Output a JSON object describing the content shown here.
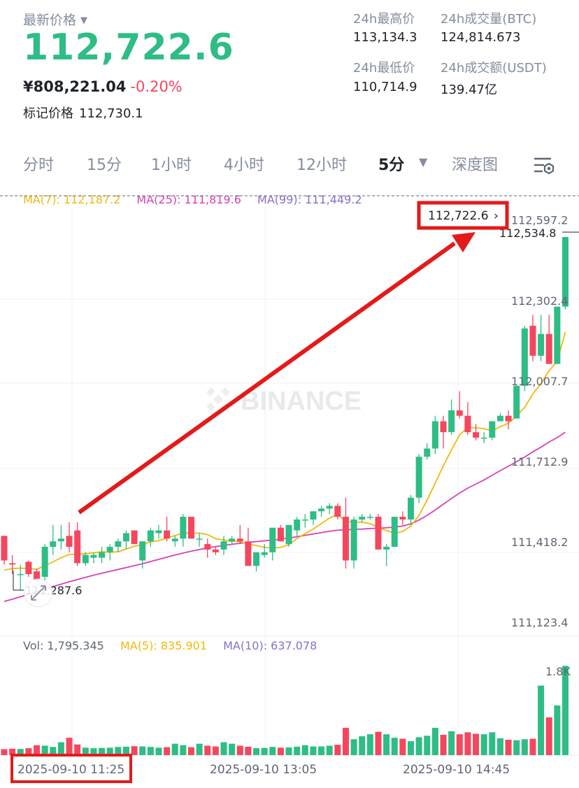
{
  "header": {
    "latest_label": "最新价格",
    "last_price": "112,722.6",
    "cny_price": "¥808,221.04",
    "change_pct": "-0.20%",
    "mark_label": "标记价格",
    "mark_price": "112,730.1"
  },
  "stats": {
    "high_label": "24h最高价",
    "high": "113,134.3",
    "vol_btc_label": "24h成交量(BTC)",
    "vol_btc": "124,814.673",
    "low_label": "24h最低价",
    "low": "110,714.9",
    "vol_usdt_label": "24h成交额(USDT)",
    "vol_usdt": "139.47亿"
  },
  "tabs": [
    "分时",
    "15分",
    "1小时",
    "4小时",
    "12小时",
    "5分",
    "深度图"
  ],
  "active_tab": "5分",
  "icons": {
    "dropdown": "caret-down-icon",
    "settings": "chart-settings-icon",
    "expand": "expand-arrows-icon"
  },
  "indicators": {
    "ma7": "MA(7): 112,187.2",
    "ma25": "MA(25): 111,819.6",
    "ma99": "MA(99): 111,449.2"
  },
  "volume_indicators": {
    "vol": "Vol: 1,795.345",
    "ma5": "MA(5): 835.901",
    "ma10": "MA(10): 637.078"
  },
  "colors": {
    "up": "#2ebd85",
    "down": "#f6465d",
    "ma7": "#f0b90b",
    "ma25": "#d742b4",
    "ma99": "#8a6fc8",
    "annotation": "#e41a1a"
  },
  "chart_labels": {
    "current_price_tag": "112,722.6",
    "max_marker": "112,534.8",
    "min_marker": "111,287.6",
    "watermark": "BINANCE",
    "volume_max": "1.8K"
  },
  "chart_data": {
    "type": "candlestick",
    "y_ticks": [
      "112,597.2",
      "112,302.4",
      "112,007.7",
      "111,712.9",
      "111,418.2",
      "111,123.4"
    ],
    "ylim": [
      111085,
      112640
    ],
    "x_tick_labels": [
      "2025-09-10 11:25",
      "2025-09-10 13:05",
      "2025-09-10 14:45"
    ],
    "interval": "5m",
    "candles_ohlc": [
      [
        111440,
        111440,
        111335,
        111350
      ],
      [
        111340,
        111370,
        111300,
        111335
      ],
      [
        111300,
        111335,
        111240,
        111300
      ],
      [
        111345,
        111350,
        111290,
        111300
      ],
      [
        111310,
        111320,
        111270,
        111280
      ],
      [
        111290,
        111410,
        111270,
        111400
      ],
      [
        111400,
        111480,
        111370,
        111420
      ],
      [
        111420,
        111480,
        111390,
        111430
      ],
      [
        111440,
        111490,
        111380,
        111400
      ],
      [
        111460,
        111490,
        111330,
        111340
      ],
      [
        111340,
        111380,
        111330,
        111370
      ],
      [
        111360,
        111380,
        111340,
        111370
      ],
      [
        111360,
        111400,
        111340,
        111380
      ],
      [
        111380,
        111410,
        111350,
        111400
      ],
      [
        111400,
        111430,
        111380,
        111420
      ],
      [
        111420,
        111460,
        111390,
        111450
      ],
      [
        111460,
        111460,
        111410,
        111410
      ],
      [
        111350,
        111420,
        111320,
        111420
      ],
      [
        111420,
        111470,
        111400,
        111460
      ],
      [
        111450,
        111480,
        111430,
        111460
      ],
      [
        111460,
        111510,
        111420,
        111430
      ],
      [
        111420,
        111440,
        111400,
        111430
      ],
      [
        111430,
        111520,
        111400,
        111510
      ],
      [
        111510,
        111510,
        111430,
        111430
      ],
      [
        111430,
        111450,
        111400,
        111430
      ],
      [
        111410,
        111430,
        111360,
        111390
      ],
      [
        111390,
        111400,
        111370,
        111380
      ],
      [
        111390,
        111440,
        111370,
        111420
      ],
      [
        111420,
        111440,
        111410,
        111430
      ],
      [
        111430,
        111480,
        111410,
        111420
      ],
      [
        111420,
        111470,
        111330,
        111330
      ],
      [
        111330,
        111380,
        111310,
        111380
      ],
      [
        111370,
        111410,
        111360,
        111380
      ],
      [
        111380,
        111470,
        111350,
        111470
      ],
      [
        111470,
        111480,
        111420,
        111420
      ],
      [
        111410,
        111480,
        111400,
        111480
      ],
      [
        111460,
        111510,
        111440,
        111500
      ],
      [
        111500,
        111520,
        111470,
        111500
      ],
      [
        111500,
        111530,
        111480,
        111530
      ],
      [
        111530,
        111550,
        111510,
        111540
      ],
      [
        111540,
        111560,
        111520,
        111550
      ],
      [
        111550,
        111560,
        111500,
        111510
      ],
      [
        111510,
        111580,
        111320,
        111350
      ],
      [
        111350,
        111510,
        111320,
        111500
      ],
      [
        111500,
        111520,
        111490,
        111510
      ],
      [
        111510,
        111520,
        111500,
        111510
      ],
      [
        111510,
        111520,
        111390,
        111390
      ],
      [
        111390,
        111410,
        111330,
        111400
      ],
      [
        111400,
        111510,
        111400,
        111510
      ],
      [
        111510,
        111530,
        111480,
        111500
      ],
      [
        111500,
        111590,
        111480,
        111580
      ],
      [
        111580,
        111740,
        111560,
        111730
      ],
      [
        111730,
        111780,
        111720,
        111760
      ],
      [
        111760,
        111880,
        111740,
        111860
      ],
      [
        111860,
        111880,
        111760,
        111820
      ],
      [
        111820,
        111940,
        111810,
        111900
      ],
      [
        111900,
        111970,
        111870,
        111880
      ],
      [
        111880,
        111930,
        111810,
        111820
      ],
      [
        111820,
        111850,
        111790,
        111800
      ],
      [
        111800,
        111820,
        111780,
        111800
      ],
      [
        111800,
        111860,
        111790,
        111860
      ],
      [
        111860,
        111890,
        111860,
        111880
      ],
      [
        111880,
        111900,
        111830,
        111860
      ],
      [
        111870,
        111990,
        111870,
        111990
      ],
      [
        111990,
        112210,
        111970,
        112200
      ],
      [
        112210,
        112250,
        112080,
        112100
      ],
      [
        112100,
        112250,
        112080,
        112180
      ],
      [
        112180,
        112250,
        112100,
        112070
      ],
      [
        112070,
        112280,
        112070,
        112280
      ],
      [
        112280,
        112535,
        112270,
        112535
      ]
    ],
    "volume_max_label": "1.8K",
    "volume_ylim": [
      0,
      1900
    ],
    "volume": [
      120,
      130,
      125,
      140,
      200,
      190,
      165,
      260,
      350,
      215,
      150,
      140,
      145,
      150,
      165,
      170,
      180,
      175,
      165,
      150,
      160,
      230,
      200,
      160,
      230,
      190,
      175,
      260,
      230,
      190,
      170,
      140,
      145,
      165,
      150,
      155,
      170,
      200,
      175,
      175,
      190,
      210,
      550,
      320,
      380,
      420,
      470,
      420,
      350,
      330,
      280,
      360,
      390,
      550,
      410,
      480,
      420,
      460,
      430,
      420,
      460,
      340,
      310,
      300,
      320,
      330,
      1400,
      760,
      1000,
      1796
    ],
    "ma7": [
      111315,
      111320,
      111322,
      111320,
      111318,
      111330,
      111345,
      111360,
      111372,
      111372,
      111375,
      111378,
      111382,
      111380,
      111382,
      111392,
      111402,
      111408,
      111418,
      111423,
      111432,
      111441,
      111450,
      111450,
      111450,
      111445,
      111430,
      111425,
      111420,
      111419,
      111410,
      111405,
      111398,
      111395,
      111398,
      111408,
      111430,
      111448,
      111465,
      111485,
      111505,
      111519,
      111493,
      111490,
      111490,
      111485,
      111470,
      111460,
      111450,
      111456,
      111476,
      111515,
      111571,
      111633,
      111697,
      111755,
      111810,
      111837,
      111836,
      111833,
      111825,
      111840,
      111853,
      111879,
      111911,
      111960,
      111998,
      112045,
      112080,
      112187
    ],
    "ma25": [
      111200,
      111208,
      111217,
      111226,
      111235,
      111245,
      111254,
      111263,
      111272,
      111280,
      111288,
      111296,
      111303,
      111310,
      111317,
      111324,
      111331,
      111338,
      111346,
      111354,
      111362,
      111370,
      111377,
      111384,
      111390,
      111396,
      111401,
      111405,
      111409,
      111413,
      111416,
      111419,
      111422,
      111425,
      111428,
      111432,
      111437,
      111442,
      111447,
      111452,
      111457,
      111461,
      111462,
      111464,
      111465,
      111467,
      111468,
      111470,
      111472,
      111476,
      111484,
      111498,
      111515,
      111535,
      111556,
      111577,
      111597,
      111615,
      111630,
      111645,
      111662,
      111679,
      111695,
      111712,
      111729,
      111748,
      111765,
      111784,
      111800,
      111820
    ]
  }
}
